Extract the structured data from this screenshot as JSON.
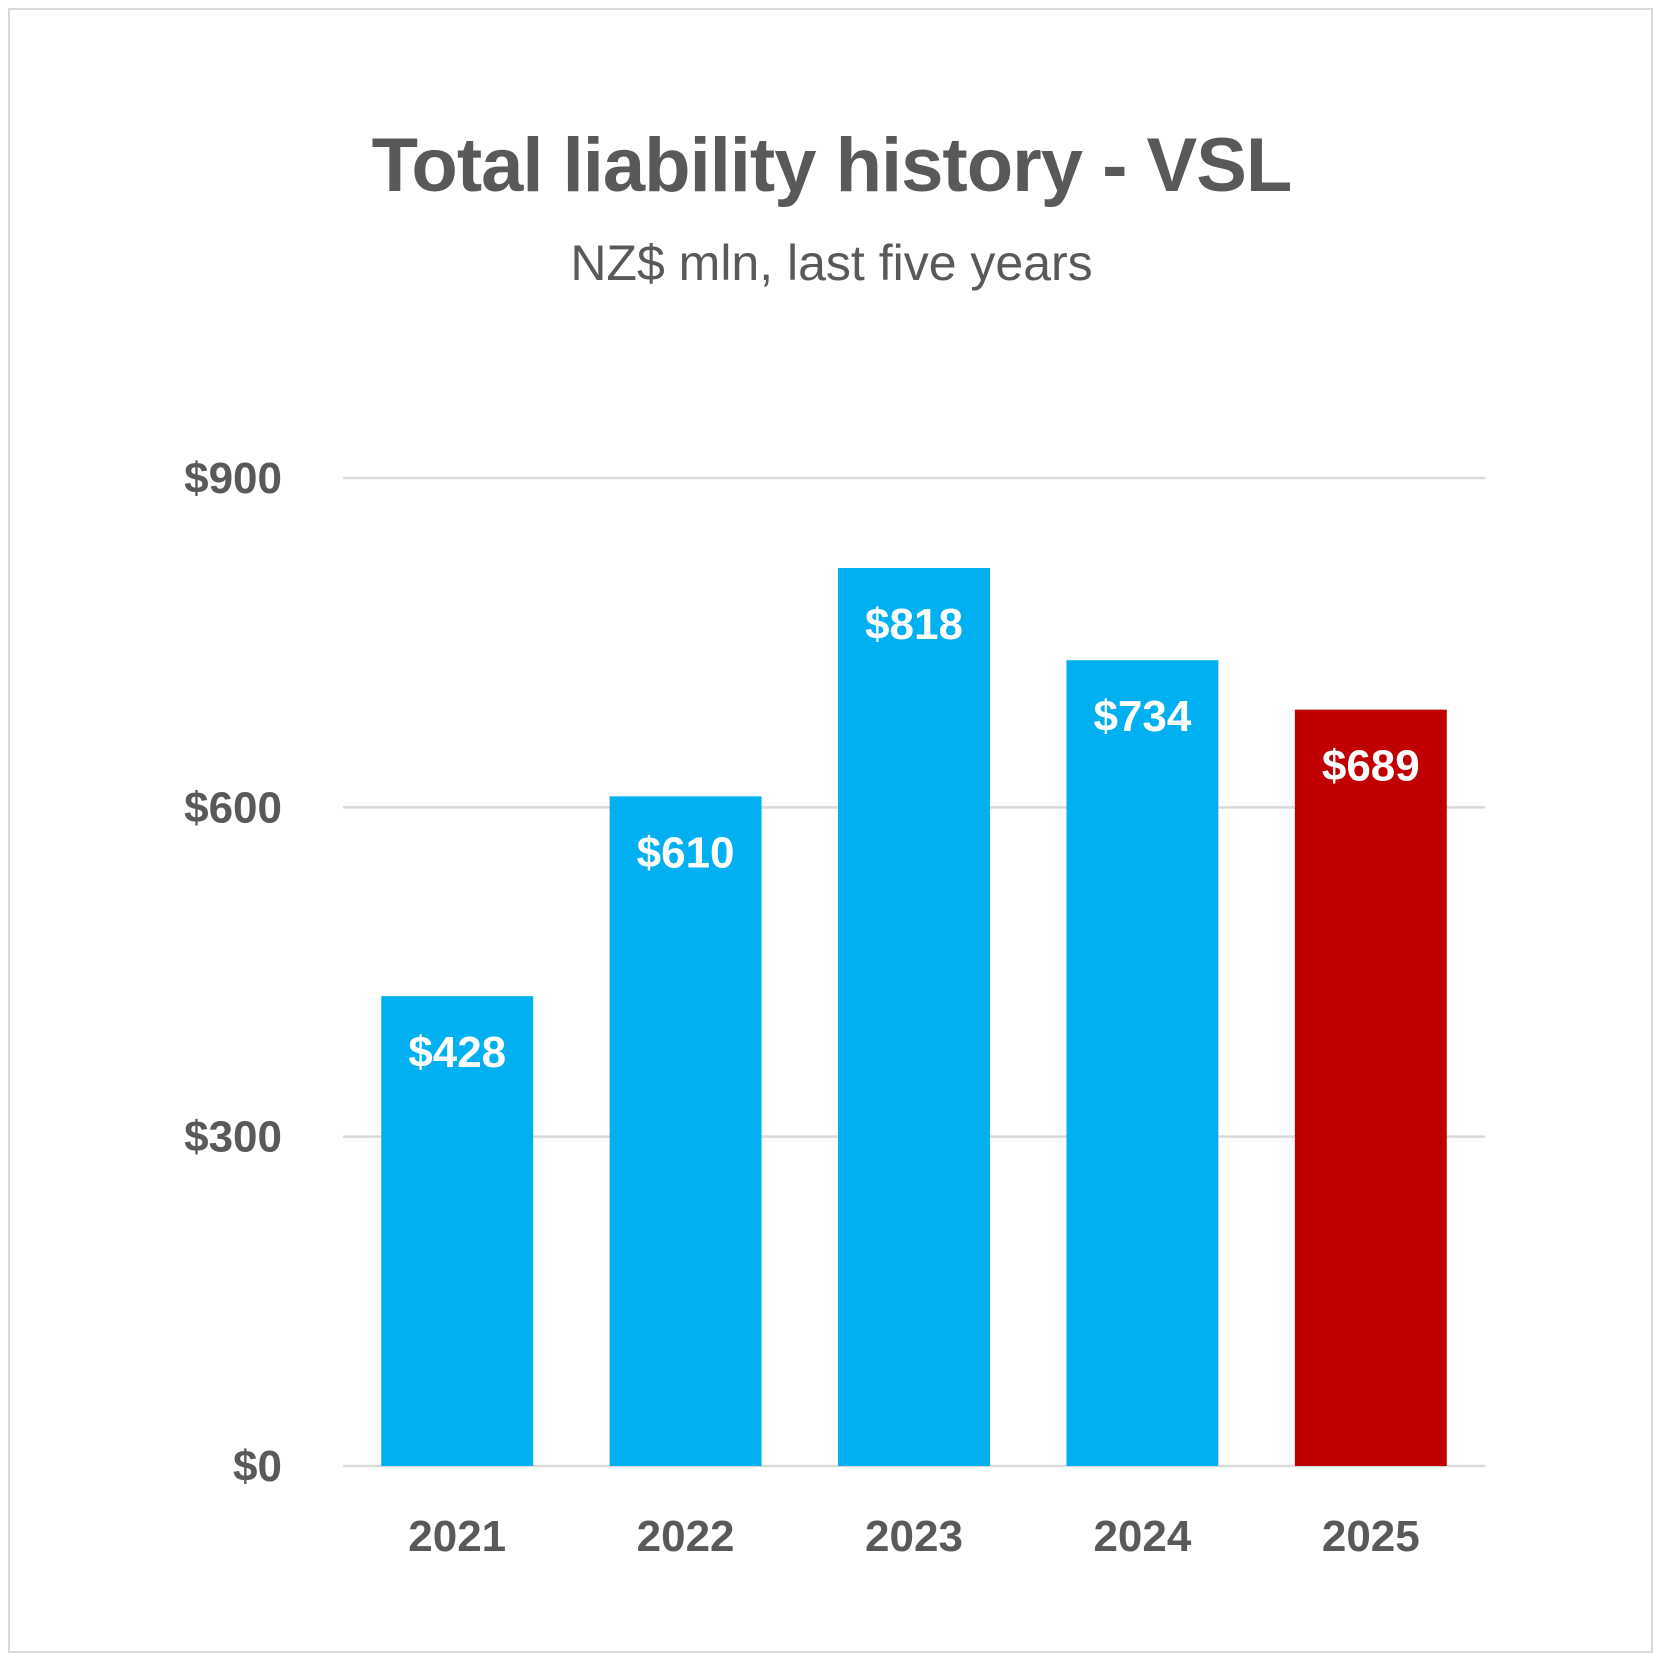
{
  "chart_data": {
    "type": "bar",
    "title": "Total liability history - VSL",
    "subtitle": "NZ$ mln, last five years",
    "categories": [
      "2021",
      "2022",
      "2023",
      "2024",
      "2025"
    ],
    "values": [
      428,
      610,
      818,
      734,
      689
    ],
    "data_labels": [
      "$428",
      "$610",
      "$818",
      "$734",
      "$689"
    ],
    "bar_colors": [
      "#00b0f0",
      "#00b0f0",
      "#00b0f0",
      "#00b0f0",
      "#c00000"
    ],
    "ylim": [
      0,
      900
    ],
    "yticks": [
      0,
      300,
      600,
      900
    ],
    "ytick_labels": [
      "$0",
      "$300",
      "$600",
      "$900"
    ],
    "grid": true,
    "legend": "none",
    "xlabel": "",
    "ylabel": ""
  },
  "colors": {
    "text": "#595959",
    "gridline": "#d9d9d9",
    "bar_default": "#00b0f0",
    "bar_highlight": "#c00000",
    "data_label": "#ffffff"
  }
}
